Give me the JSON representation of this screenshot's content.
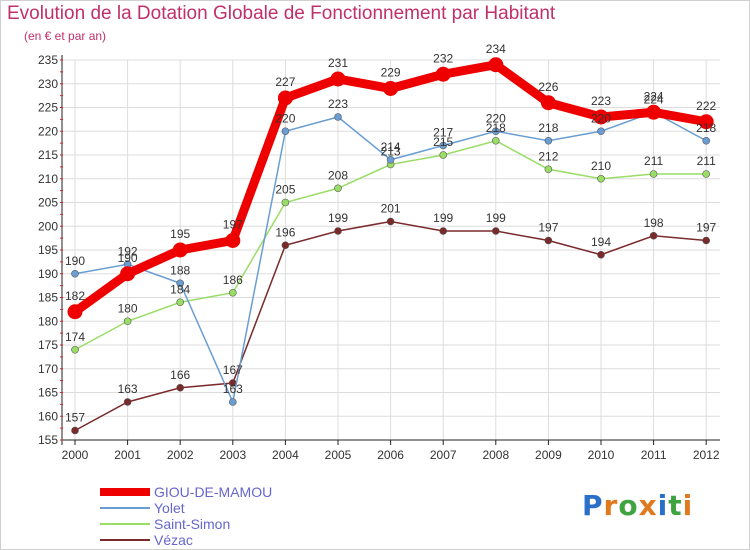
{
  "header": {
    "title": "Evolution de la Dotation Globale de Fonctionnement par Habitant",
    "subtitle": "(en € et par an)"
  },
  "logo": {
    "text": "Proxiti",
    "letters": [
      "P",
      "r",
      "o",
      "x",
      "i",
      "t",
      "i"
    ],
    "colors": [
      "#2a6fc9",
      "#e07a1f",
      "#3fa33f",
      "#e07a1f",
      "#2a6fc9",
      "#3fa33f",
      "#e07a1f"
    ]
  },
  "chart_data": {
    "type": "line",
    "title": "Evolution de la Dotation Globale de Fonctionnement par Habitant",
    "subtitle": "(en € et par an)",
    "xlabel": "",
    "ylabel": "",
    "categories": [
      "2000",
      "2001",
      "2002",
      "2003",
      "2004",
      "2005",
      "2006",
      "2007",
      "2008",
      "2009",
      "2010",
      "2011",
      "2012"
    ],
    "ylim": [
      155,
      235
    ],
    "yticks": [
      155,
      160,
      165,
      170,
      175,
      180,
      185,
      190,
      195,
      200,
      205,
      210,
      215,
      220,
      225,
      230,
      235
    ],
    "grid": true,
    "legend_position": "bottom-left",
    "series": [
      {
        "name": "GIOU-DE-MAMOU",
        "color": "#ee0000",
        "highlight": true,
        "values": [
          182,
          190,
          195,
          197,
          227,
          231,
          229,
          232,
          234,
          226,
          223,
          224,
          222
        ]
      },
      {
        "name": "Yolet",
        "color": "#6a9ed3",
        "highlight": false,
        "values": [
          190,
          192,
          188,
          163,
          220,
          223,
          214,
          217,
          220,
          218,
          220,
          224,
          218
        ]
      },
      {
        "name": "Saint-Simon",
        "color": "#99dd66",
        "highlight": false,
        "values": [
          174,
          180,
          184,
          186,
          205,
          208,
          213,
          215,
          218,
          212,
          210,
          211,
          211
        ]
      },
      {
        "name": "Vézac",
        "color": "#7a2a2a",
        "highlight": false,
        "values": [
          157,
          163,
          166,
          167,
          196,
          199,
          201,
          199,
          199,
          197,
          194,
          198,
          197
        ]
      }
    ]
  },
  "colors": {
    "title": "#c0306a",
    "grid": "#dddddd",
    "axis": "#222222",
    "legend_text": "#6666cc"
  }
}
